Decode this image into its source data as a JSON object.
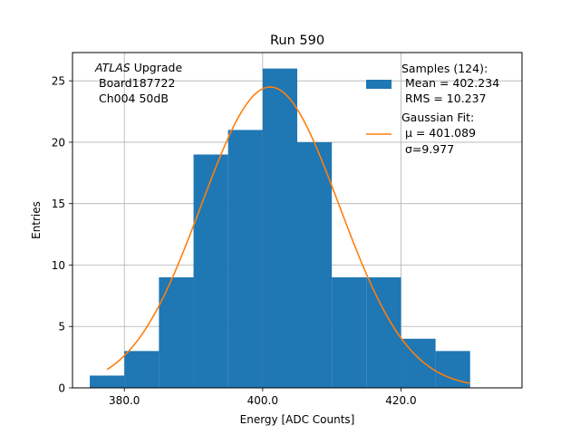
{
  "chart_data": {
    "type": "bar",
    "title": "Run 590",
    "xlabel": "Energy [ADC Counts]",
    "ylabel": "Entries",
    "xlim": [
      372.5,
      437.5
    ],
    "ylim": [
      0,
      27.3
    ],
    "x_ticks": [
      380,
      400,
      420
    ],
    "x_tick_labels": [
      "380.0",
      "400.0",
      "420.0"
    ],
    "y_ticks": [
      0,
      5,
      10,
      15,
      20,
      25
    ],
    "y_tick_labels": [
      "0",
      "5",
      "10",
      "15",
      "20",
      "25"
    ],
    "grid": true,
    "annotation": {
      "line1_italic": "ATLAS",
      "line1_rest": " Upgrade",
      "line2": "Board187722",
      "line3": "Ch004 50dB"
    },
    "histogram": {
      "name": "Samples (124):",
      "color": "#1f77b4",
      "bins": [
        {
          "x0": 375,
          "x1": 380,
          "count": 1
        },
        {
          "x0": 380,
          "x1": 385,
          "count": 3
        },
        {
          "x0": 385,
          "x1": 390,
          "count": 9
        },
        {
          "x0": 390,
          "x1": 395,
          "count": 19
        },
        {
          "x0": 395,
          "x1": 400,
          "count": 21
        },
        {
          "x0": 400,
          "x1": 405,
          "count": 26
        },
        {
          "x0": 405,
          "x1": 410,
          "count": 20
        },
        {
          "x0": 410,
          "x1": 415,
          "count": 9
        },
        {
          "x0": 415,
          "x1": 420,
          "count": 9
        },
        {
          "x0": 420,
          "x1": 425,
          "count": 4
        },
        {
          "x0": 425,
          "x1": 430,
          "count": 3
        }
      ]
    },
    "fit": {
      "name": "Gaussian Fit:",
      "color": "#ff7f0e",
      "amplitude": 24.5,
      "mu": 401.089,
      "sigma": 9.977,
      "x_range": [
        377.5,
        430
      ]
    },
    "legend": {
      "placement": "top-right",
      "hist_label": "Samples (124):",
      "hist_mean": " Mean = 402.234",
      "hist_rms": " RMS = 10.237",
      "fit_label": "Gaussian Fit:",
      "fit_mu": " μ = 401.089",
      "fit_sigma": " σ=9.977"
    }
  }
}
